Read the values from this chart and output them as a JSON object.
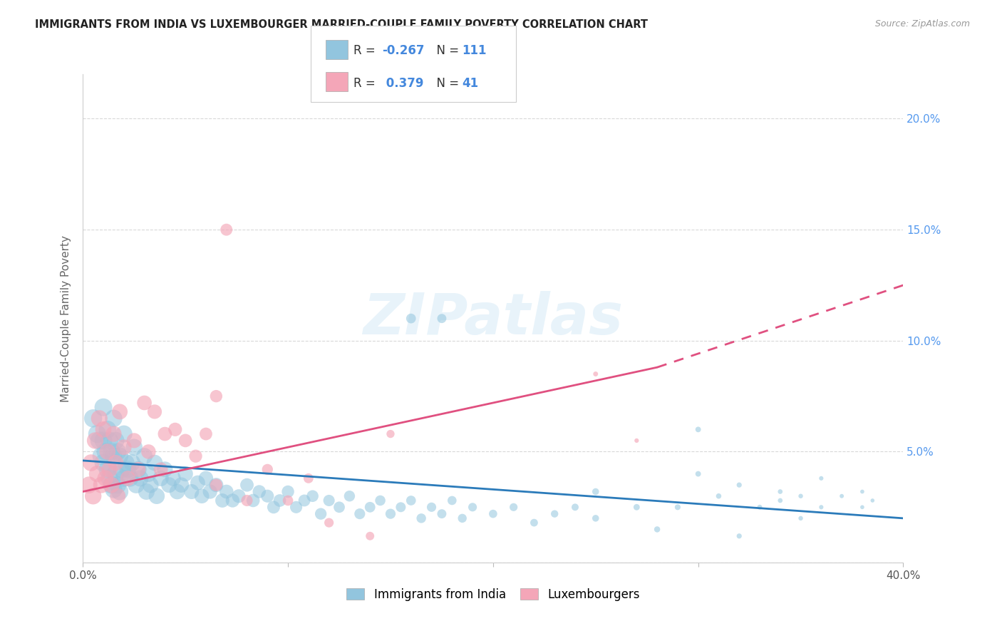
{
  "title": "IMMIGRANTS FROM INDIA VS LUXEMBOURGER MARRIED-COUPLE FAMILY POVERTY CORRELATION CHART",
  "source": "Source: ZipAtlas.com",
  "ylabel": "Married-Couple Family Poverty",
  "xlim": [
    0.0,
    0.4
  ],
  "ylim": [
    0.0,
    0.22
  ],
  "blue_color": "#92c5de",
  "pink_color": "#f4a6b8",
  "blue_line_color": "#2b7bba",
  "pink_line_color": "#e05080",
  "blue_R": -0.267,
  "blue_N": 111,
  "pink_R": 0.379,
  "pink_N": 41,
  "watermark": "ZIPatlas",
  "legend_label_blue": "Immigrants from India",
  "legend_label_pink": "Luxembourgers",
  "blue_points_x": [
    0.005,
    0.007,
    0.008,
    0.009,
    0.01,
    0.01,
    0.01,
    0.011,
    0.012,
    0.012,
    0.013,
    0.013,
    0.014,
    0.014,
    0.015,
    0.015,
    0.015,
    0.016,
    0.016,
    0.017,
    0.017,
    0.018,
    0.018,
    0.019,
    0.02,
    0.02,
    0.021,
    0.022,
    0.023,
    0.024,
    0.025,
    0.026,
    0.027,
    0.028,
    0.03,
    0.031,
    0.032,
    0.033,
    0.035,
    0.036,
    0.038,
    0.04,
    0.042,
    0.044,
    0.046,
    0.048,
    0.05,
    0.053,
    0.056,
    0.058,
    0.06,
    0.062,
    0.065,
    0.068,
    0.07,
    0.073,
    0.076,
    0.08,
    0.083,
    0.086,
    0.09,
    0.093,
    0.096,
    0.1,
    0.104,
    0.108,
    0.112,
    0.116,
    0.12,
    0.125,
    0.13,
    0.135,
    0.14,
    0.145,
    0.15,
    0.155,
    0.16,
    0.165,
    0.17,
    0.175,
    0.18,
    0.185,
    0.19,
    0.2,
    0.21,
    0.22,
    0.23,
    0.24,
    0.25,
    0.27,
    0.29,
    0.31,
    0.33,
    0.35,
    0.36,
    0.37,
    0.38,
    0.385,
    0.16,
    0.175,
    0.3,
    0.32,
    0.34,
    0.3,
    0.25,
    0.34,
    0.36,
    0.38,
    0.28,
    0.32,
    0.35
  ],
  "blue_points_y": [
    0.065,
    0.058,
    0.055,
    0.048,
    0.07,
    0.055,
    0.045,
    0.05,
    0.06,
    0.042,
    0.055,
    0.038,
    0.05,
    0.035,
    0.065,
    0.048,
    0.033,
    0.055,
    0.04,
    0.05,
    0.035,
    0.048,
    0.032,
    0.042,
    0.058,
    0.038,
    0.045,
    0.042,
    0.038,
    0.045,
    0.052,
    0.035,
    0.042,
    0.038,
    0.048,
    0.032,
    0.04,
    0.035,
    0.045,
    0.03,
    0.038,
    0.042,
    0.035,
    0.038,
    0.032,
    0.035,
    0.04,
    0.032,
    0.036,
    0.03,
    0.038,
    0.032,
    0.035,
    0.028,
    0.032,
    0.028,
    0.03,
    0.035,
    0.028,
    0.032,
    0.03,
    0.025,
    0.028,
    0.032,
    0.025,
    0.028,
    0.03,
    0.022,
    0.028,
    0.025,
    0.03,
    0.022,
    0.025,
    0.028,
    0.022,
    0.025,
    0.028,
    0.02,
    0.025,
    0.022,
    0.028,
    0.02,
    0.025,
    0.022,
    0.025,
    0.018,
    0.022,
    0.025,
    0.02,
    0.025,
    0.025,
    0.03,
    0.025,
    0.03,
    0.025,
    0.03,
    0.025,
    0.028,
    0.11,
    0.11,
    0.04,
    0.035,
    0.032,
    0.06,
    0.032,
    0.028,
    0.038,
    0.032,
    0.015,
    0.012,
    0.02
  ],
  "pink_points_x": [
    0.003,
    0.004,
    0.005,
    0.006,
    0.007,
    0.008,
    0.009,
    0.01,
    0.011,
    0.012,
    0.013,
    0.014,
    0.015,
    0.016,
    0.017,
    0.018,
    0.02,
    0.022,
    0.025,
    0.027,
    0.03,
    0.032,
    0.035,
    0.038,
    0.04,
    0.045,
    0.05,
    0.055,
    0.06,
    0.065,
    0.07,
    0.08,
    0.09,
    0.1,
    0.11,
    0.12,
    0.14,
    0.15,
    0.25,
    0.27,
    0.065
  ],
  "pink_points_y": [
    0.035,
    0.045,
    0.03,
    0.055,
    0.04,
    0.065,
    0.035,
    0.06,
    0.038,
    0.05,
    0.042,
    0.035,
    0.058,
    0.045,
    0.03,
    0.068,
    0.052,
    0.038,
    0.055,
    0.042,
    0.072,
    0.05,
    0.068,
    0.042,
    0.058,
    0.06,
    0.055,
    0.048,
    0.058,
    0.075,
    0.15,
    0.028,
    0.042,
    0.028,
    0.038,
    0.018,
    0.012,
    0.058,
    0.085,
    0.055,
    0.035
  ],
  "blue_slope": -0.052,
  "blue_intercept": 0.045,
  "pink_slope": 0.28,
  "pink_intercept": 0.03
}
